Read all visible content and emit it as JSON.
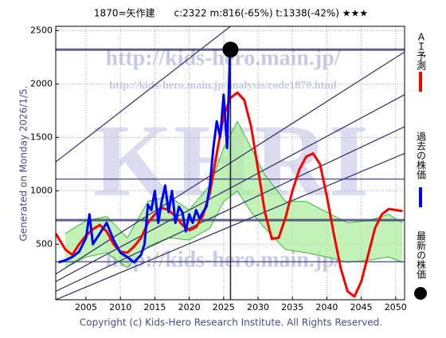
{
  "chart_data": {
    "type": "line",
    "title": "1870=矢作建　　c:2322  m:816(-65%)  t:1338(-42%)  ★★★",
    "side_note": "Generated on Monday 2026/1/5.",
    "footer": "Copyright (c) Kids-Hero Research Institute. All Rights Reserved.",
    "watermarks": [
      "http://kids-hero.main.jp/",
      "http://kids-hero.main.jp/analysis/code1870.html",
      "KHRI"
    ],
    "xlim": [
      2000.6,
      2051.3
    ],
    "ylim": [
      -20,
      2540
    ],
    "xticks": [
      2005,
      2010,
      2015,
      2020,
      2025,
      2030,
      2035,
      2040,
      2045,
      2050
    ],
    "yticks": [
      500,
      1000,
      1500,
      2000,
      2500
    ],
    "grid": true,
    "band": {
      "color": "#a8ec98",
      "line": "#3cb83c",
      "x": [
        2002,
        2005,
        2008,
        2011,
        2014,
        2017,
        2020,
        2023,
        2025,
        2027,
        2029,
        2031,
        2034,
        2037,
        2040,
        2043,
        2046,
        2049,
        2051
      ],
      "upper": [
        600,
        720,
        760,
        560,
        900,
        950,
        820,
        1050,
        1400,
        1650,
        1400,
        1150,
        900,
        900,
        800,
        700,
        720,
        780,
        700
      ],
      "lower": [
        280,
        380,
        420,
        280,
        480,
        560,
        540,
        650,
        900,
        1000,
        800,
        650,
        450,
        420,
        380,
        330,
        350,
        380,
        330
      ]
    },
    "hlines": [
      2322,
      1110,
      725,
      335
    ],
    "trend_lines": [
      {
        "x": [
          2000.6,
          2026
        ],
        "values": [
          1270,
          2540
        ]
      },
      {
        "x": [
          2000.6,
          2051.3
        ],
        "values": [
          220,
          2300
        ]
      },
      {
        "x": [
          2000.6,
          2051.3
        ],
        "values": [
          150,
          1900
        ]
      },
      {
        "x": [
          2000.6,
          2051.3
        ],
        "values": [
          60,
          1600
        ]
      },
      {
        "x": [
          2000.6,
          2051.3
        ],
        "values": [
          -20,
          1350
        ]
      }
    ],
    "series": [
      {
        "name": "ＡＩ予測",
        "color": "#ff0000",
        "x": [
          2000.6,
          2002,
          2003,
          2004,
          2005,
          2006,
          2007,
          2008,
          2009,
          2010,
          2011,
          2012,
          2013,
          2014,
          2015,
          2016,
          2017,
          2018,
          2019,
          2020,
          2021,
          2022,
          2023,
          2024,
          2025,
          2026,
          2027,
          2028,
          2029,
          2030,
          2031,
          2032,
          2033,
          2034,
          2035,
          2036,
          2037,
          2038,
          2039,
          2040,
          2041,
          2042,
          2043,
          2044,
          2045,
          2046,
          2047,
          2048,
          2049,
          2050,
          2051
        ],
        "values": [
          600,
          450,
          400,
          500,
          580,
          640,
          680,
          620,
          500,
          430,
          420,
          480,
          560,
          700,
          780,
          840,
          820,
          760,
          680,
          630,
          660,
          770,
          980,
          1350,
          1700,
          1870,
          1920,
          1850,
          1600,
          1200,
          800,
          550,
          560,
          750,
          1000,
          1200,
          1320,
          1350,
          1250,
          950,
          600,
          280,
          60,
          10,
          150,
          400,
          650,
          780,
          830,
          820,
          810
        ]
      },
      {
        "name": "過去の株価",
        "color": "#0000ff",
        "x": [
          2001,
          2002,
          2003,
          2004,
          2005,
          2005.5,
          2006,
          2007,
          2008,
          2009,
          2010,
          2011,
          2012,
          2013,
          2013.5,
          2014,
          2014.5,
          2015,
          2015.5,
          2016,
          2016.5,
          2017,
          2017.5,
          2018,
          2018.5,
          2019,
          2019.5,
          2020,
          2020.5,
          2021,
          2021.5,
          2022,
          2022.5,
          2023,
          2023.5,
          2024,
          2024.5,
          2025,
          2025.5,
          2025.9,
          2026
        ],
        "values": [
          330,
          350,
          380,
          430,
          560,
          780,
          500,
          600,
          700,
          540,
          420,
          380,
          330,
          400,
          500,
          870,
          820,
          1000,
          700,
          900,
          1050,
          800,
          1000,
          700,
          850,
          800,
          620,
          780,
          700,
          820,
          740,
          800,
          850,
          1050,
          1400,
          1650,
          1500,
          1900,
          1400,
          2250,
          2322
        ]
      }
    ],
    "latest": {
      "name": "最新の株価",
      "color": "#000000",
      "x": 2026,
      "y": 2322
    }
  }
}
